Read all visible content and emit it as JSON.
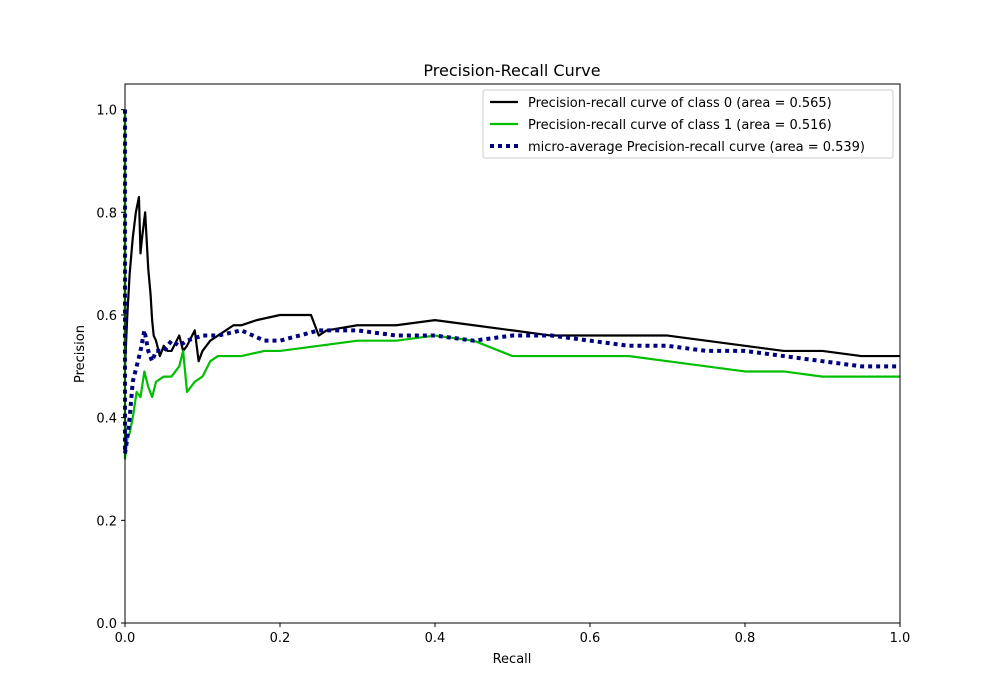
{
  "chart_data": {
    "type": "line",
    "title": "Precision-Recall Curve",
    "xlabel": "Recall",
    "ylabel": "Precision",
    "xlim": [
      0.0,
      1.0
    ],
    "ylim": [
      0.0,
      1.05
    ],
    "xticks": [
      "0.0",
      "0.2",
      "0.4",
      "0.6",
      "0.8",
      "1.0"
    ],
    "yticks": [
      "0.0",
      "0.2",
      "0.4",
      "0.6",
      "0.8",
      "1.0"
    ],
    "grid": false,
    "legend_position": "upper right",
    "series": [
      {
        "name": "Precision-recall curve of class 0 (area = 0.565)",
        "color": "#000000",
        "style": "solid",
        "x": [
          0.0,
          0.0,
          0.003,
          0.006,
          0.01,
          0.014,
          0.018,
          0.02,
          0.022,
          0.026,
          0.03,
          0.033,
          0.035,
          0.037,
          0.04,
          0.045,
          0.05,
          0.055,
          0.06,
          0.07,
          0.075,
          0.08,
          0.09,
          0.095,
          0.1,
          0.11,
          0.12,
          0.13,
          0.14,
          0.15,
          0.17,
          0.2,
          0.22,
          0.24,
          0.25,
          0.26,
          0.3,
          0.35,
          0.4,
          0.45,
          0.5,
          0.55,
          0.6,
          0.65,
          0.7,
          0.75,
          0.8,
          0.85,
          0.9,
          0.95,
          1.0
        ],
        "y": [
          1.0,
          0.5,
          0.6,
          0.68,
          0.75,
          0.8,
          0.83,
          0.72,
          0.75,
          0.8,
          0.69,
          0.64,
          0.59,
          0.56,
          0.55,
          0.52,
          0.54,
          0.53,
          0.53,
          0.56,
          0.53,
          0.54,
          0.57,
          0.51,
          0.53,
          0.55,
          0.56,
          0.57,
          0.58,
          0.58,
          0.59,
          0.6,
          0.6,
          0.6,
          0.56,
          0.57,
          0.58,
          0.58,
          0.59,
          0.58,
          0.57,
          0.56,
          0.56,
          0.56,
          0.56,
          0.55,
          0.54,
          0.53,
          0.53,
          0.52,
          0.52
        ]
      },
      {
        "name": "Precision-recall curve of class 1 (area = 0.516)",
        "color": "#00bf00",
        "style": "solid",
        "x": [
          0.0,
          0.0,
          0.003,
          0.006,
          0.01,
          0.015,
          0.02,
          0.025,
          0.03,
          0.035,
          0.04,
          0.05,
          0.06,
          0.07,
          0.075,
          0.08,
          0.09,
          0.1,
          0.11,
          0.12,
          0.13,
          0.15,
          0.18,
          0.2,
          0.25,
          0.3,
          0.35,
          0.4,
          0.45,
          0.5,
          0.55,
          0.6,
          0.65,
          0.7,
          0.75,
          0.8,
          0.85,
          0.9,
          0.95,
          1.0
        ],
        "y": [
          1.0,
          0.32,
          0.36,
          0.37,
          0.4,
          0.45,
          0.44,
          0.49,
          0.46,
          0.44,
          0.47,
          0.48,
          0.48,
          0.5,
          0.53,
          0.45,
          0.47,
          0.48,
          0.51,
          0.52,
          0.52,
          0.52,
          0.53,
          0.53,
          0.54,
          0.55,
          0.55,
          0.56,
          0.55,
          0.52,
          0.52,
          0.52,
          0.52,
          0.51,
          0.5,
          0.49,
          0.49,
          0.48,
          0.48,
          0.48
        ]
      },
      {
        "name": "micro-average Precision-recall curve (area = 0.539)",
        "color": "#000080",
        "style": "dotted",
        "x": [
          0.0,
          0.0,
          0.003,
          0.006,
          0.01,
          0.015,
          0.02,
          0.025,
          0.03,
          0.035,
          0.04,
          0.05,
          0.06,
          0.07,
          0.08,
          0.1,
          0.12,
          0.15,
          0.18,
          0.2,
          0.25,
          0.3,
          0.35,
          0.4,
          0.45,
          0.5,
          0.55,
          0.6,
          0.65,
          0.7,
          0.75,
          0.8,
          0.85,
          0.9,
          0.95,
          1.0
        ],
        "y": [
          1.0,
          0.33,
          0.36,
          0.4,
          0.47,
          0.5,
          0.53,
          0.57,
          0.53,
          0.51,
          0.53,
          0.53,
          0.55,
          0.54,
          0.55,
          0.56,
          0.56,
          0.57,
          0.55,
          0.55,
          0.57,
          0.57,
          0.56,
          0.56,
          0.55,
          0.56,
          0.56,
          0.55,
          0.54,
          0.54,
          0.53,
          0.53,
          0.52,
          0.51,
          0.5,
          0.5
        ]
      }
    ]
  }
}
